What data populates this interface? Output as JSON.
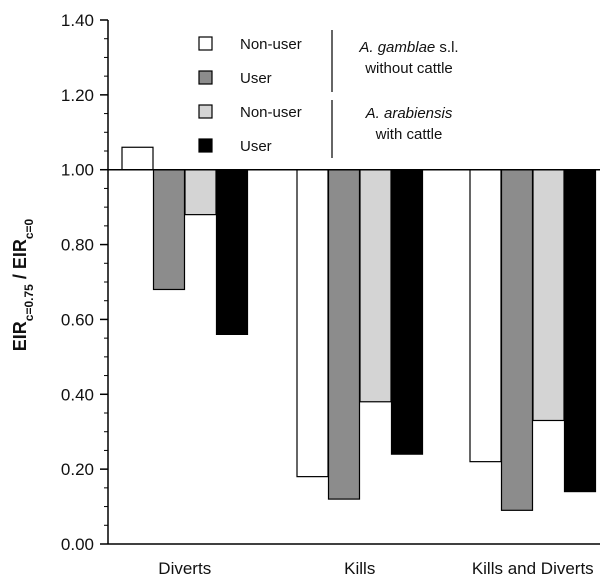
{
  "chart_data": {
    "type": "bar",
    "title": "",
    "xlabel": "",
    "ylabel": {
      "main1": "EIR",
      "sub1": "c=0.75",
      "sep": " / ",
      "main2": "EIR",
      "sub2": "c=0"
    },
    "ylim": [
      0,
      1.4
    ],
    "yticks": [
      "0.00",
      "0.20",
      "0.40",
      "0.60",
      "0.80",
      "1.00",
      "1.20",
      "1.40"
    ],
    "baseline": 1.0,
    "categories": [
      "Diverts",
      "Kills",
      "Kills and Diverts"
    ],
    "series": [
      {
        "name": "Non-user",
        "color": "#ffffff",
        "values": [
          1.06,
          0.18,
          0.22
        ]
      },
      {
        "name": "User",
        "color": "#8c8c8c",
        "values": [
          0.68,
          0.12,
          0.09
        ]
      },
      {
        "name": "Non-user",
        "color": "#d4d4d4",
        "values": [
          0.88,
          0.38,
          0.33
        ]
      },
      {
        "name": "User",
        "color": "#000000",
        "values": [
          0.56,
          0.24,
          0.14
        ]
      }
    ],
    "legend_groups": [
      {
        "italic": "A. gamblae",
        "rest": " s.l.",
        "line2": "without cattle"
      },
      {
        "italic": "A. arabiensis",
        "rest": "",
        "line2": "with cattle"
      }
    ],
    "legend_position": "top-center",
    "grid": false
  }
}
